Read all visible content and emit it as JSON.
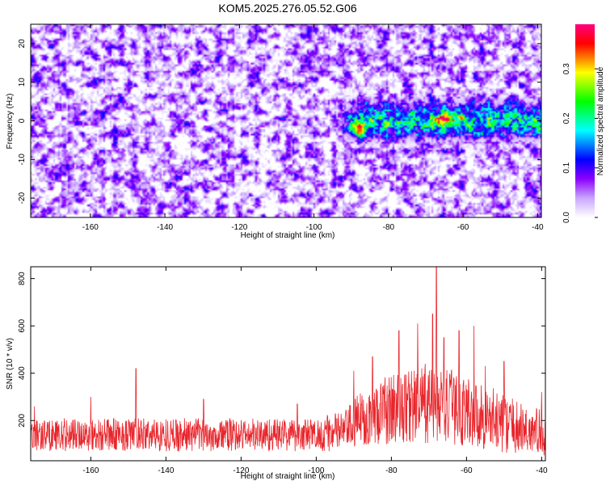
{
  "chart_data": [
    {
      "type": "heatmap",
      "title": "KOM5.2025.276.05.52.G06",
      "xlabel": "Height of straight line (km)",
      "ylabel": "Frequency (Hz)",
      "xlim": [
        -176,
        -39
      ],
      "ylim": [
        -25,
        25
      ],
      "x_ticks": [
        -160,
        -140,
        -120,
        -100,
        -80,
        -60,
        -40
      ],
      "y_ticks": [
        -20,
        -10,
        0,
        10,
        20
      ],
      "colorbar": {
        "label": "Normalized spectral amplitude",
        "range": [
          0,
          0.39
        ],
        "ticks": [
          0.0,
          0.1,
          0.2,
          0.3
        ],
        "colors": [
          "#ffffff",
          "#8c00ff",
          "#0000ff",
          "#00ffff",
          "#00ff00",
          "#ffff00",
          "#ff0000",
          "#ff0080"
        ]
      },
      "features": {
        "background_level": 0.05,
        "signal_band": {
          "x_range": [
            -95,
            -40
          ],
          "frequency_center": 0,
          "frequency_halfwidth": 5,
          "peak_x": -64,
          "peak_amplitude": 0.38
        }
      }
    },
    {
      "type": "line",
      "xlabel": "Height of straight line (km)",
      "ylabel": "SNR (10 * v/v)",
      "xlim": [
        -176,
        -39
      ],
      "ylim": [
        30,
        850
      ],
      "x_ticks": [
        -160,
        -140,
        -120,
        -100,
        -80,
        -60,
        -40
      ],
      "y_ticks": [
        200,
        400,
        600,
        800
      ],
      "grid": false,
      "series": [
        {
          "color": "#e8262c",
          "baseline": [
            [
              -176,
              140
            ],
            [
              -100,
              140
            ],
            [
              -92,
              160
            ],
            [
              -88,
              210
            ],
            [
              -80,
              250
            ],
            [
              -72,
              270
            ],
            [
              -68,
              270
            ],
            [
              -60,
              240
            ],
            [
              -52,
              200
            ],
            [
              -45,
              160
            ],
            [
              -39,
              150
            ]
          ],
          "noise": [
            [
              -176,
              70
            ],
            [
              -100,
              70
            ],
            [
              -92,
              90
            ],
            [
              -88,
              120
            ],
            [
              -80,
              150
            ],
            [
              -72,
              170
            ],
            [
              -68,
              170
            ],
            [
              -60,
              150
            ],
            [
              -52,
              130
            ],
            [
              -45,
              110
            ],
            [
              -39,
              100
            ]
          ],
          "peaks": [
            [
              -175,
              260
            ],
            [
              -160,
              300
            ],
            [
              -148,
              420
            ],
            [
              -130,
              290
            ],
            [
              -105,
              270
            ],
            [
              -90,
              410
            ],
            [
              -85,
              470
            ],
            [
              -78,
              580
            ],
            [
              -73,
              610
            ],
            [
              -69,
              650
            ],
            [
              -68,
              850
            ],
            [
              -66,
              550
            ],
            [
              -62,
              580
            ],
            [
              -58,
              600
            ],
            [
              -55,
              430
            ],
            [
              -50,
              450
            ],
            [
              -40,
              320
            ]
          ],
          "samples": 1500
        }
      ]
    }
  ]
}
